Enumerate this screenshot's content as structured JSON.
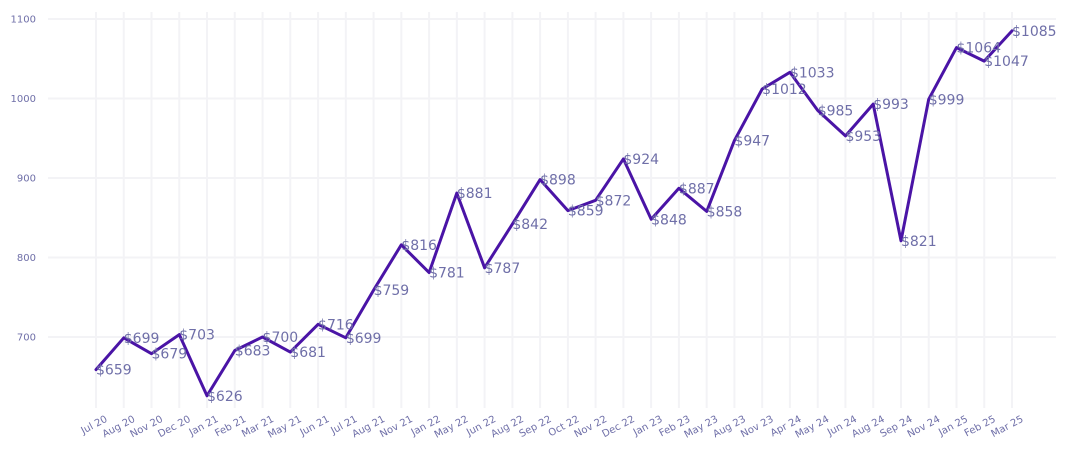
{
  "chart_data": {
    "type": "line",
    "title": "",
    "xlabel": "",
    "ylabel": "",
    "x": [
      "Jul 20",
      "Aug 20",
      "Nov 20",
      "Dec 20",
      "Jan 21",
      "Feb 21",
      "Mar 21",
      "May 21",
      "Jun 21",
      "Jul 21",
      "Aug 21",
      "Nov 21",
      "Jan 22",
      "May 22",
      "Jun 22",
      "Aug 22",
      "Sep 22",
      "Oct 22",
      "Nov 22",
      "Dec 22",
      "Jan 23",
      "Feb 23",
      "May 23",
      "Aug 23",
      "Nov 23",
      "Apr 24",
      "May 24",
      "Jun 24",
      "Aug 24",
      "Sep 24",
      "Nov 24",
      "Jan 25",
      "Feb 25",
      "Mar 25"
    ],
    "series": [
      {
        "values": [
          659,
          699,
          679,
          703,
          626,
          683,
          700,
          681,
          716,
          699,
          759,
          816,
          781,
          881,
          787,
          842,
          898,
          859,
          872,
          924,
          848,
          887,
          858,
          947,
          1012,
          1033,
          985,
          953,
          993,
          821,
          999,
          1064,
          1047,
          1085
        ],
        "labels": [
          "$659",
          "$699",
          "$679",
          "$703",
          "$626",
          "$683",
          "$700",
          "$681",
          "$716",
          "$699",
          "$759",
          "$816",
          "$781",
          "$881",
          "$787",
          "$842",
          "$898",
          "$859",
          "$872",
          "$924",
          "$848",
          "$887",
          "$858",
          "$947",
          "$1012",
          "$1033",
          "$985",
          "$953",
          "$993",
          "$821",
          "$999",
          "$1064",
          "$1047",
          "$1085"
        ]
      }
    ],
    "yticks": [
      "700",
      "800",
      "900",
      "1000",
      "1100"
    ],
    "ylim": [
      600,
      1100
    ],
    "grid": true,
    "legend": "none",
    "colors": {
      "line": "#4a14a6",
      "text": "#6f6fa8",
      "grid": "#f3f3f6"
    }
  }
}
